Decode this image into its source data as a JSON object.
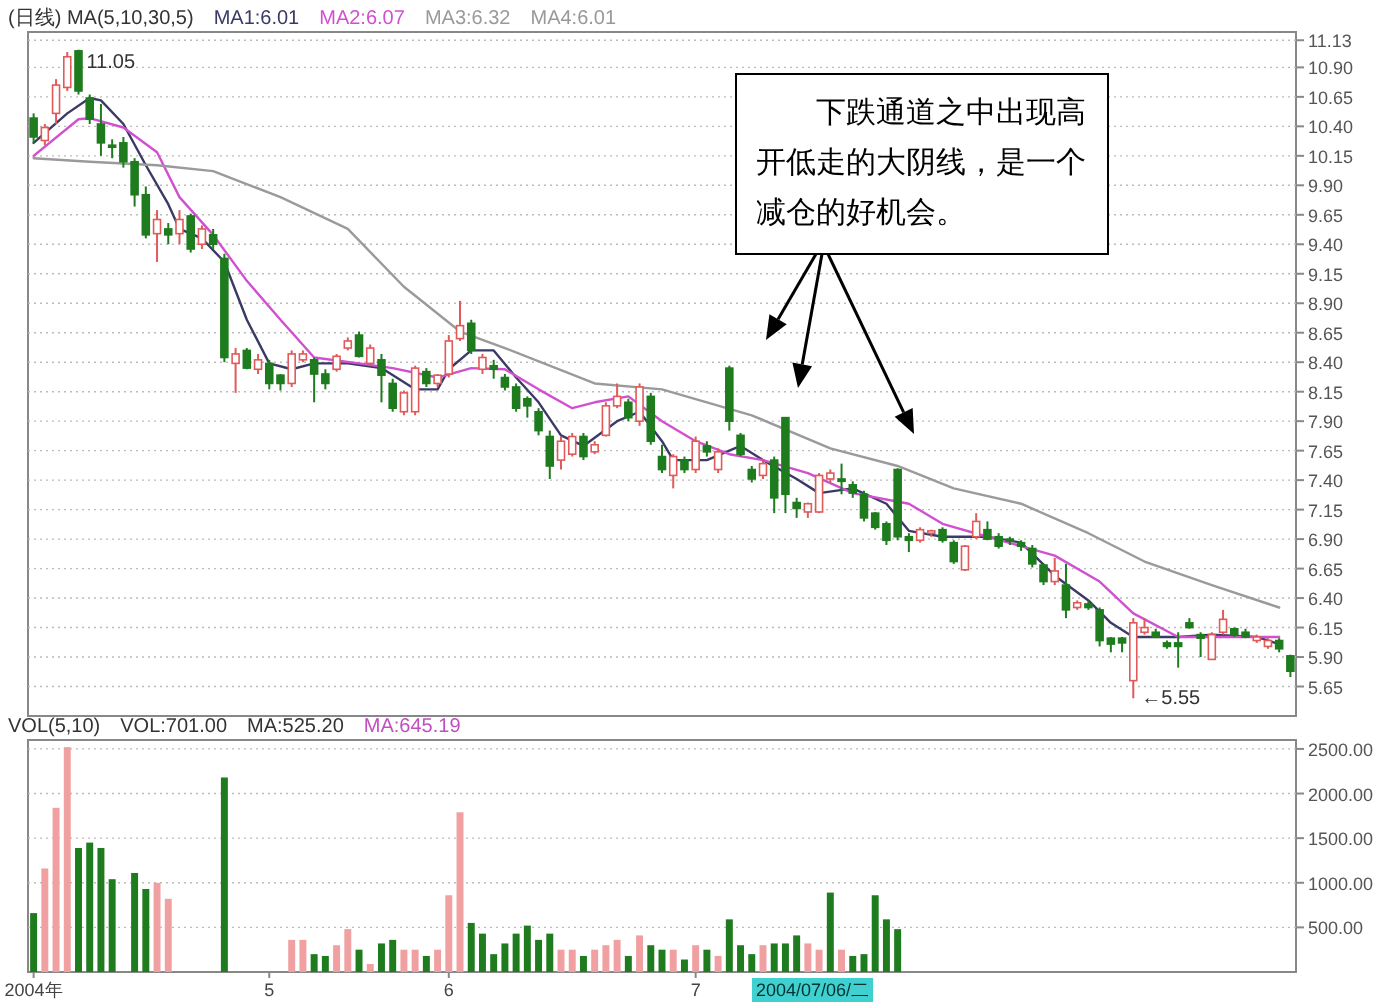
{
  "chart_data": [
    {
      "type": "candlestick",
      "title": "(日线) MA(5,10,30,5)",
      "grid": "y",
      "colors": [
        "#1e7b1e",
        "#e05a5a",
        "#e05a5a",
        "#e05a5a",
        "#1e7b1e",
        "#1e7b1e",
        "#1e7b1e",
        "#1e7b1e",
        "#1e7b1e",
        "#1e7b1e",
        "#1e7b1e",
        "#e05a5a",
        "#1e7b1e",
        "#e05a5a",
        "#1e7b1e",
        "#e05a5a",
        "#1e7b1e",
        "#1e7b1e",
        "#e05a5a",
        "#1e7b1e",
        "#e05a5a",
        "#1e7b1e",
        "#1e7b1e",
        "#e05a5a",
        "#e05a5a",
        "#1e7b1e",
        "#1e7b1e",
        "#e05a5a",
        "#e05a5a",
        "#1e7b1e",
        "#e05a5a",
        "#1e7b1e",
        "#1e7b1e",
        "#e05a5a",
        "#e05a5a",
        "#1e7b1e",
        "#e05a5a",
        "#e05a5a",
        "#e05a5a",
        "#1e7b1e",
        "#e05a5a",
        "#1e7b1e",
        "#1e7b1e",
        "#1e7b1e",
        "#1e7b1e",
        "#1e7b1e",
        "#1e7b1e",
        "#e05a5a",
        "#e05a5a",
        "#1e7b1e",
        "#e05a5a",
        "#e05a5a",
        "#e05a5a",
        "#1e7b1e",
        "#e05a5a",
        "#1e7b1e",
        "#1e7b1e",
        "#e05a5a",
        "#1e7b1e",
        "#e05a5a",
        "#1e7b1e",
        "#e05a5a",
        "#1e7b1e",
        "#1e7b1e",
        "#1e7b1e",
        "#e05a5a",
        "#1e7b1e",
        "#1e7b1e",
        "#1e7b1e",
        "#e05a5a",
        "#e05a5a",
        "#e05a5a",
        "#1e7b1e",
        "#1e7b1e",
        "#1e7b1e",
        "#1e7b1e",
        "#1e7b1e",
        "#1e7b1e",
        "#1e7b1e",
        "#e05a5a",
        "#e05a5a",
        "#1e7b1e",
        "#1e7b1e",
        "#e05a5a",
        "#e05a5a",
        "#1e7b1e",
        "#1e7b1e",
        "#1e7b1e",
        "#1e7b1e",
        "#1e7b1e",
        "#1e7b1e",
        "#e05a5a",
        "#1e7b1e",
        "#e05a5a",
        "#1e7b1e",
        "#1e7b1e",
        "#1e7b1e",
        "#1e7b1e",
        "#e05a5a",
        "#e05a5a",
        "#1e7b1e",
        "#1e7b1e",
        "#1e7b1e",
        "#1e7b1e",
        "#1e7b1e",
        "#e05a5a",
        "#e05a5a",
        "#1e7b1e",
        "#1e7b1e",
        "#e05a5a",
        "#e05a5a",
        "#1e7b1e",
        "#1e7b1e"
      ],
      "categories": [
        null,
        null,
        null,
        null,
        null,
        null,
        null,
        null,
        null,
        null,
        null,
        null,
        null,
        null,
        null,
        null,
        null,
        null,
        null,
        null,
        null,
        null,
        null,
        null,
        null,
        null,
        null,
        null,
        null,
        null,
        null,
        null,
        null,
        null,
        null,
        null,
        null,
        null,
        null,
        null,
        null,
        null,
        null,
        null,
        null,
        null,
        null,
        null,
        null,
        null,
        null,
        null,
        null,
        null,
        null,
        null,
        null,
        null,
        null,
        null,
        null,
        null,
        null,
        null,
        null,
        null,
        null,
        null,
        null,
        null,
        null,
        null,
        null,
        null,
        null,
        null,
        null,
        null,
        null,
        null,
        null,
        null,
        null,
        null,
        null,
        null,
        null,
        null,
        null,
        null,
        null,
        null,
        null,
        null,
        null,
        null,
        null,
        null,
        null,
        null,
        null,
        null,
        null,
        null,
        null,
        null,
        null,
        null,
        null,
        null,
        null,
        null,
        null
      ],
      "ylim": [
        5.4,
        11.2
      ],
      "yticks": [
        5.65,
        {
          "value": 5.9,
          "label": "5.90"
        },
        6.15,
        {
          "value": 6.4,
          "label": "6.40"
        },
        6.65,
        {
          "value": 6.9,
          "label": "6.90"
        },
        7.15,
        {
          "value": 7.4,
          "label": "7.40"
        },
        7.65,
        {
          "value": 7.9,
          "label": "7.90"
        },
        8.15,
        {
          "value": 8.4,
          "label": "8.40"
        },
        8.65,
        {
          "value": 8.9,
          "label": "8.90"
        },
        9.15,
        {
          "value": 9.4,
          "label": "9.40"
        },
        9.65,
        {
          "value": 9.9,
          "label": "9.90"
        },
        10.15,
        {
          "value": 10.4,
          "label": "10.40"
        },
        10.65,
        {
          "value": 10.9,
          "label": "10.90"
        },
        11.13
      ],
      "ohlc": [
        [
          10.47,
          10.51,
          10.26,
          10.31
        ],
        [
          10.28,
          10.42,
          10.24,
          10.39
        ],
        [
          10.51,
          10.8,
          10.42,
          10.75
        ],
        [
          10.73,
          11.03,
          10.7,
          10.99
        ],
        [
          11.04,
          11.05,
          10.67,
          10.7
        ],
        [
          10.64,
          10.67,
          10.42,
          10.46
        ],
        [
          10.42,
          10.59,
          10.15,
          10.26
        ],
        [
          10.24,
          10.29,
          10.13,
          10.23
        ],
        [
          10.26,
          10.31,
          10.05,
          10.1
        ],
        [
          10.1,
          10.13,
          9.72,
          9.82
        ],
        [
          9.82,
          9.89,
          9.45,
          9.48
        ],
        [
          9.49,
          9.69,
          9.25,
          9.61
        ],
        [
          9.53,
          9.58,
          9.4,
          9.48
        ],
        [
          9.49,
          9.69,
          9.4,
          9.61
        ],
        [
          9.64,
          9.66,
          9.33,
          9.36
        ],
        [
          9.4,
          9.56,
          9.36,
          9.53
        ],
        [
          9.48,
          9.53,
          9.36,
          9.4
        ],
        [
          9.28,
          9.32,
          8.4,
          8.44
        ],
        [
          8.39,
          8.52,
          8.14,
          8.47
        ],
        [
          8.5,
          8.52,
          8.34,
          8.35
        ],
        [
          8.34,
          8.47,
          8.3,
          8.42
        ],
        [
          8.39,
          8.42,
          8.17,
          8.22
        ],
        [
          8.29,
          8.3,
          8.16,
          8.22
        ],
        [
          8.22,
          8.5,
          8.19,
          8.47
        ],
        [
          8.42,
          8.5,
          8.4,
          8.47
        ],
        [
          8.42,
          8.44,
          8.06,
          8.3
        ],
        [
          8.3,
          8.34,
          8.17,
          8.22
        ],
        [
          8.34,
          8.47,
          8.32,
          8.45
        ],
        [
          8.52,
          8.61,
          8.5,
          8.58
        ],
        [
          8.63,
          8.66,
          8.44,
          8.45
        ],
        [
          8.39,
          8.55,
          8.37,
          8.52
        ],
        [
          8.42,
          8.47,
          8.06,
          8.29
        ],
        [
          8.22,
          8.26,
          7.98,
          8.01
        ],
        [
          7.98,
          8.16,
          7.95,
          8.14
        ],
        [
          7.98,
          8.37,
          7.95,
          8.35
        ],
        [
          8.32,
          8.35,
          8.19,
          8.22
        ],
        [
          8.22,
          8.3,
          8.19,
          8.29
        ],
        [
          8.3,
          8.63,
          8.27,
          8.58
        ],
        [
          8.6,
          8.92,
          8.58,
          8.71
        ],
        [
          8.73,
          8.76,
          8.47,
          8.5
        ],
        [
          8.34,
          8.47,
          8.3,
          8.44
        ],
        [
          8.37,
          8.42,
          8.26,
          8.34
        ],
        [
          8.27,
          8.3,
          8.16,
          8.19
        ],
        [
          8.19,
          8.22,
          7.98,
          8.01
        ],
        [
          8.09,
          8.11,
          7.93,
          8.03
        ],
        [
          7.98,
          8.01,
          7.78,
          7.82
        ],
        [
          7.77,
          7.82,
          7.41,
          7.52
        ],
        [
          7.57,
          7.77,
          7.49,
          7.73
        ],
        [
          7.62,
          7.8,
          7.6,
          7.77
        ],
        [
          7.77,
          7.8,
          7.57,
          7.6
        ],
        [
          7.64,
          7.73,
          7.62,
          7.7
        ],
        [
          7.78,
          8.06,
          7.77,
          8.03
        ],
        [
          8.03,
          8.22,
          8.01,
          8.11
        ],
        [
          8.06,
          8.09,
          7.9,
          7.93
        ],
        [
          7.9,
          8.22,
          7.86,
          8.19
        ],
        [
          8.11,
          8.14,
          7.7,
          7.73
        ],
        [
          7.6,
          7.7,
          7.46,
          7.49
        ],
        [
          7.44,
          7.62,
          7.33,
          7.6
        ],
        [
          7.57,
          7.6,
          7.46,
          7.49
        ],
        [
          7.49,
          7.77,
          7.46,
          7.73
        ],
        [
          7.69,
          7.73,
          7.6,
          7.64
        ],
        [
          7.49,
          7.67,
          7.46,
          7.64
        ],
        [
          8.35,
          8.37,
          7.82,
          7.9
        ],
        [
          7.78,
          7.8,
          7.6,
          7.62
        ],
        [
          7.49,
          7.52,
          7.38,
          7.41
        ],
        [
          7.44,
          7.57,
          7.41,
          7.54
        ],
        [
          7.57,
          7.6,
          7.12,
          7.25
        ],
        [
          7.93,
          7.93,
          7.12,
          7.28
        ],
        [
          7.21,
          7.25,
          7.08,
          7.16
        ],
        [
          7.13,
          7.21,
          7.08,
          7.2
        ],
        [
          7.13,
          7.46,
          7.12,
          7.44
        ],
        [
          7.41,
          7.49,
          7.38,
          7.46
        ],
        [
          7.41,
          7.54,
          7.28,
          7.39
        ],
        [
          7.36,
          7.39,
          7.25,
          7.29
        ],
        [
          7.28,
          7.31,
          7.05,
          7.08
        ],
        [
          7.12,
          7.13,
          6.98,
          7.0
        ],
        [
          7.03,
          7.05,
          6.85,
          6.89
        ],
        [
          7.49,
          7.5,
          6.89,
          6.92
        ],
        [
          6.92,
          6.95,
          6.79,
          6.89
        ],
        [
          6.89,
          7.0,
          6.87,
          6.98
        ],
        [
          6.95,
          6.98,
          6.92,
          6.97
        ],
        [
          6.98,
          7.0,
          6.87,
          6.89
        ],
        [
          6.87,
          6.89,
          6.69,
          6.71
        ],
        [
          6.64,
          6.85,
          6.63,
          6.84
        ],
        [
          6.92,
          7.12,
          6.9,
          7.05
        ],
        [
          6.98,
          7.05,
          6.89,
          6.9
        ],
        [
          6.92,
          6.95,
          6.82,
          6.84
        ],
        [
          6.9,
          6.92,
          6.85,
          6.89
        ],
        [
          6.87,
          6.89,
          6.8,
          6.84
        ],
        [
          6.82,
          6.85,
          6.66,
          6.69
        ],
        [
          6.68,
          6.69,
          6.51,
          6.54
        ],
        [
          6.54,
          6.74,
          6.51,
          6.63
        ],
        [
          6.51,
          6.69,
          6.23,
          6.3
        ],
        [
          6.32,
          6.38,
          6.3,
          6.36
        ],
        [
          6.35,
          6.38,
          6.3,
          6.32
        ],
        [
          6.3,
          6.32,
          5.99,
          6.04
        ],
        [
          6.06,
          6.07,
          5.94,
          6.01
        ],
        [
          6.06,
          6.07,
          5.94,
          6.02
        ],
        [
          5.7,
          6.23,
          5.55,
          6.19
        ],
        [
          6.11,
          6.23,
          6.09,
          6.15
        ],
        [
          6.11,
          6.14,
          6.06,
          6.07
        ],
        [
          6.02,
          6.04,
          5.97,
          5.99
        ],
        [
          6.02,
          6.11,
          5.81,
          5.99
        ],
        [
          6.19,
          6.23,
          6.14,
          6.15
        ],
        [
          6.09,
          6.11,
          5.9,
          6.06
        ],
        [
          5.88,
          6.11,
          5.88,
          6.09
        ],
        [
          6.11,
          6.3,
          6.09,
          6.22
        ],
        [
          6.14,
          6.15,
          6.07,
          6.09
        ],
        [
          6.11,
          6.14,
          6.06,
          6.07
        ],
        [
          6.04,
          6.09,
          6.02,
          6.07
        ],
        [
          5.99,
          6.06,
          5.97,
          6.04
        ],
        [
          6.04,
          6.06,
          5.94,
          5.97
        ],
        [
          5.91,
          5.92,
          5.73,
          5.78
        ]
      ],
      "series": [
        {
          "name": "MA1:6.01",
          "type": "line",
          "color": "#3a3a66",
          "values": [
            10.26,
            null,
            null,
            10.51,
            null,
            10.64,
            10.62,
            null,
            10.42,
            null,
            10.07,
            null,
            9.74,
            9.53,
            null,
            9.45,
            null,
            9.25,
            null,
            8.76,
            null,
            8.39,
            null,
            8.34,
            null,
            8.39,
            null,
            null,
            8.39,
            null,
            null,
            8.35,
            null,
            null,
            8.17,
            null,
            8.17,
            8.34,
            null,
            8.5,
            null,
            8.5,
            null,
            8.27,
            null,
            8.06,
            null,
            7.78,
            null,
            7.69,
            null,
            null,
            7.9,
            null,
            7.98,
            null,
            7.73,
            7.57,
            null,
            null,
            7.57,
            null,
            null,
            7.69,
            null,
            7.57,
            null,
            null,
            7.41,
            null,
            7.29,
            null,
            null,
            7.33,
            null,
            null,
            7.2,
            null,
            6.97,
            null,
            null,
            6.92,
            null,
            null,
            null,
            6.92,
            null,
            null,
            6.87,
            null,
            null,
            6.59,
            null,
            null,
            6.38,
            null,
            6.19,
            null,
            6.07,
            null,
            null,
            null,
            6.07,
            null,
            null,
            6.09,
            null,
            null,
            null,
            6.07,
            null,
            6.01,
            null
          ]
        },
        {
          "name": "MA2:6.07",
          "type": "line",
          "color": "#d050d0",
          "values": [
            10.15,
            null,
            null,
            null,
            10.46,
            10.47,
            null,
            null,
            10.39,
            null,
            null,
            10.18,
            null,
            9.8,
            null,
            null,
            9.48,
            null,
            null,
            9.09,
            null,
            null,
            8.76,
            null,
            null,
            8.44,
            null,
            null,
            null,
            8.39,
            null,
            null,
            8.35,
            null,
            null,
            null,
            8.27,
            null,
            null,
            8.35,
            null,
            null,
            8.34,
            null,
            null,
            8.17,
            null,
            null,
            8.01,
            null,
            8.06,
            null,
            null,
            8.11,
            null,
            null,
            7.9,
            null,
            null,
            7.73,
            null,
            null,
            7.62,
            null,
            null,
            7.57,
            null,
            null,
            null,
            7.46,
            null,
            null,
            null,
            7.29,
            null,
            null,
            null,
            null,
            7.2,
            null,
            null,
            7.03,
            null,
            null,
            null,
            6.92,
            null,
            null,
            6.84,
            null,
            null,
            6.76,
            null,
            null,
            null,
            6.54,
            null,
            null,
            6.27,
            null,
            null,
            null,
            6.07,
            null,
            null,
            6.07,
            null,
            null,
            null,
            null,
            null,
            6.07,
            null
          ]
        },
        {
          "name": "MA3:6.32",
          "type": "line",
          "color": "#9a9a9a",
          "values": [
            10.13,
            null,
            null,
            null,
            null,
            10.1,
            null,
            null,
            null,
            null,
            null,
            10.07,
            null,
            null,
            null,
            null,
            10.02,
            null,
            null,
            null,
            null,
            null,
            9.8,
            null,
            null,
            null,
            null,
            null,
            9.53,
            null,
            null,
            null,
            null,
            9.04,
            null,
            null,
            null,
            null,
            8.66,
            null,
            null,
            null,
            8.52,
            null,
            null,
            null,
            null,
            null,
            null,
            null,
            8.22,
            null,
            null,
            null,
            null,
            null,
            8.17,
            null,
            null,
            null,
            null,
            null,
            null,
            null,
            7.95,
            null,
            null,
            null,
            null,
            null,
            null,
            7.67,
            null,
            null,
            null,
            null,
            null,
            7.52,
            null,
            null,
            null,
            null,
            7.33,
            null,
            null,
            null,
            null,
            null,
            7.2,
            null,
            null,
            null,
            null,
            null,
            6.95,
            null,
            null,
            null,
            null,
            6.71,
            null,
            null,
            null,
            null,
            null,
            6.51,
            null,
            null,
            null,
            null,
            null,
            6.32,
            null
          ]
        }
      ],
      "annotations": [
        "11.05",
        "←5.55",
        "下跌通道之中出现高开低走的大阴线，是一个减仓的好机会。",
        "MA4:6.01"
      ]
    },
    {
      "type": "bar",
      "title": "VOL(5,10)",
      "grid": "y",
      "categories": [
        "2004年",
        null,
        null,
        null,
        null,
        null,
        null,
        null,
        null,
        null,
        null,
        null,
        null,
        null,
        null,
        null,
        null,
        null,
        null,
        null,
        null,
        "5",
        null,
        null,
        null,
        null,
        null,
        null,
        null,
        null,
        null,
        null,
        null,
        null,
        null,
        null,
        null,
        "6",
        null,
        null,
        null,
        null,
        null,
        null,
        null,
        null,
        null,
        null,
        null,
        null,
        null,
        null,
        null,
        null,
        null,
        null,
        null,
        null,
        null,
        "7",
        null,
        null,
        null,
        null,
        null,
        null,
        null,
        null,
        null,
        null,
        null,
        null,
        null,
        null,
        null,
        null,
        null,
        null,
        null,
        null,
        null,
        null,
        null,
        null,
        null,
        null,
        null,
        null,
        null,
        null,
        null,
        null,
        null,
        null,
        null,
        null,
        null,
        null,
        null,
        null,
        null,
        null,
        null,
        null,
        null,
        null,
        null,
        null,
        null,
        null,
        null,
        null,
        null
      ],
      "ylim": [
        0,
        2600
      ],
      "yticks": [
        {
          "value": 500,
          "label": "500.00"
        },
        {
          "value": 1000,
          "label": "1000.00"
        },
        {
          "value": 1500,
          "label": "1500.00"
        },
        {
          "value": 2000,
          "label": "2000.00"
        },
        {
          "value": 2500,
          "label": "2500.00"
        }
      ],
      "values": [
        660,
        1160,
        1840,
        2520,
        1390,
        1450,
        1390,
        1040,
        null,
        1110,
        930,
        1000,
        820,
        null,
        null,
        null,
        null,
        2180,
        null,
        null,
        null,
        null,
        null,
        360,
        360,
        200,
        180,
        300,
        480,
        250,
        90,
        320,
        360,
        250,
        250,
        180,
        250,
        860,
        1790,
        550,
        430,
        200,
        320,
        430,
        520,
        360,
        430,
        250,
        250,
        180,
        250,
        300,
        360,
        180,
        410,
        300,
        250,
        250,
        140,
        300,
        250,
        180,
        590,
        300,
        200,
        300,
        320,
        320,
        410,
        320,
        250,
        890,
        250,
        180,
        200,
        860,
        590,
        480,
        null,
        null,
        null,
        null,
        null,
        null,
        null,
        null,
        null,
        null,
        null,
        null,
        null,
        null,
        null,
        null,
        null,
        null,
        null,
        null,
        null,
        null,
        null,
        null,
        null,
        null,
        null,
        null,
        null,
        null,
        null,
        null,
        null,
        null,
        null
      ],
      "colors": [
        "#1e7b1e",
        "#f0a0a0",
        "#f0a0a0",
        "#f0a0a0",
        "#1e7b1e",
        "#1e7b1e",
        "#1e7b1e",
        "#1e7b1e",
        null,
        "#1e7b1e",
        "#1e7b1e",
        "#f0a0a0",
        "#f0a0a0",
        null,
        null,
        null,
        null,
        "#1e7b1e",
        null,
        null,
        null,
        null,
        null,
        "#f0a0a0",
        "#f0a0a0",
        "#1e7b1e",
        "#1e7b1e",
        "#f0a0a0",
        "#f0a0a0",
        "#1e7b1e",
        "#f0a0a0",
        "#1e7b1e",
        "#1e7b1e",
        "#f0a0a0",
        "#f0a0a0",
        "#1e7b1e",
        "#f0a0a0",
        "#f0a0a0",
        "#f0a0a0",
        "#1e7b1e",
        "#1e7b1e",
        "#1e7b1e",
        "#1e7b1e",
        "#1e7b1e",
        "#1e7b1e",
        "#1e7b1e",
        "#1e7b1e",
        "#f0a0a0",
        "#f0a0a0",
        "#1e7b1e",
        "#f0a0a0",
        "#f0a0a0",
        "#f0a0a0",
        "#1e7b1e",
        "#f0a0a0",
        "#1e7b1e",
        "#1e7b1e",
        "#f0a0a0",
        "#1e7b1e",
        "#f0a0a0",
        "#1e7b1e",
        "#f0a0a0",
        "#1e7b1e",
        "#1e7b1e",
        "#1e7b1e",
        "#f0a0a0",
        "#1e7b1e",
        "#1e7b1e",
        "#1e7b1e",
        "#f0a0a0",
        "#f0a0a0",
        "#1e7b1e",
        "#f0a0a0",
        "#1e7b1e",
        "#1e7b1e",
        "#1e7b1e",
        "#1e7b1e",
        "#1e7b1e",
        null,
        null,
        null,
        null,
        null,
        null,
        null,
        null,
        null,
        null,
        null,
        null,
        null,
        null,
        null,
        null,
        null,
        null,
        null,
        null,
        null,
        null,
        null,
        null,
        null,
        null,
        null,
        null,
        null,
        null,
        null,
        null,
        null,
        null,
        null
      ],
      "annotations": [
        "VOL:701.00",
        "MA:525.20",
        "MA:645.19",
        "2004/07/06/二"
      ]
    }
  ]
}
